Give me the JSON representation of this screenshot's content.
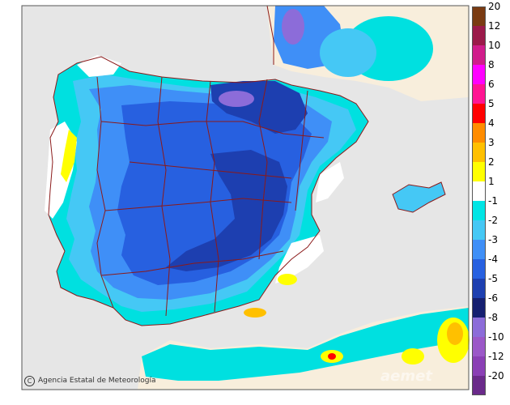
{
  "map": {
    "colors": {
      "sea": "#e6e6e6",
      "land_other": "#f8eedc",
      "border_line": "#8b1a1a",
      "frame": "#555555"
    }
  },
  "legend": {
    "items": [
      {
        "label": "20",
        "color": "#7a3b12"
      },
      {
        "label": "12",
        "color": "#9b1a4a"
      },
      {
        "label": "10",
        "color": "#d01c8b"
      },
      {
        "label": "8",
        "color": "#ff00ff"
      },
      {
        "label": "6",
        "color": "#ff1493"
      },
      {
        "label": "5",
        "color": "#ff0000"
      },
      {
        "label": "4",
        "color": "#ff8c00"
      },
      {
        "label": "3",
        "color": "#ffc000"
      },
      {
        "label": "2",
        "color": "#ffff00"
      },
      {
        "label": "1",
        "color": "#ffffff"
      },
      {
        "label": "-1",
        "color": "#00e5e5"
      },
      {
        "label": "-2",
        "color": "#45c8f5"
      },
      {
        "label": "-3",
        "color": "#3f8ff7"
      },
      {
        "label": "-4",
        "color": "#2760e0"
      },
      {
        "label": "-5",
        "color": "#1d3fb0"
      },
      {
        "label": "-6",
        "color": "#151f70"
      },
      {
        "label": "-8",
        "color": "#8c6cd9"
      },
      {
        "label": "-10",
        "color": "#9b58c8"
      },
      {
        "label": "-12",
        "color": "#8a3fb5"
      },
      {
        "label": "-20",
        "color": "#6a2a8a"
      }
    ]
  },
  "credit": {
    "icon": "copyright-icon",
    "symbol": "C",
    "text": "Agencia Estatal de Meteorología"
  },
  "watermark": {
    "text": "aemet"
  }
}
